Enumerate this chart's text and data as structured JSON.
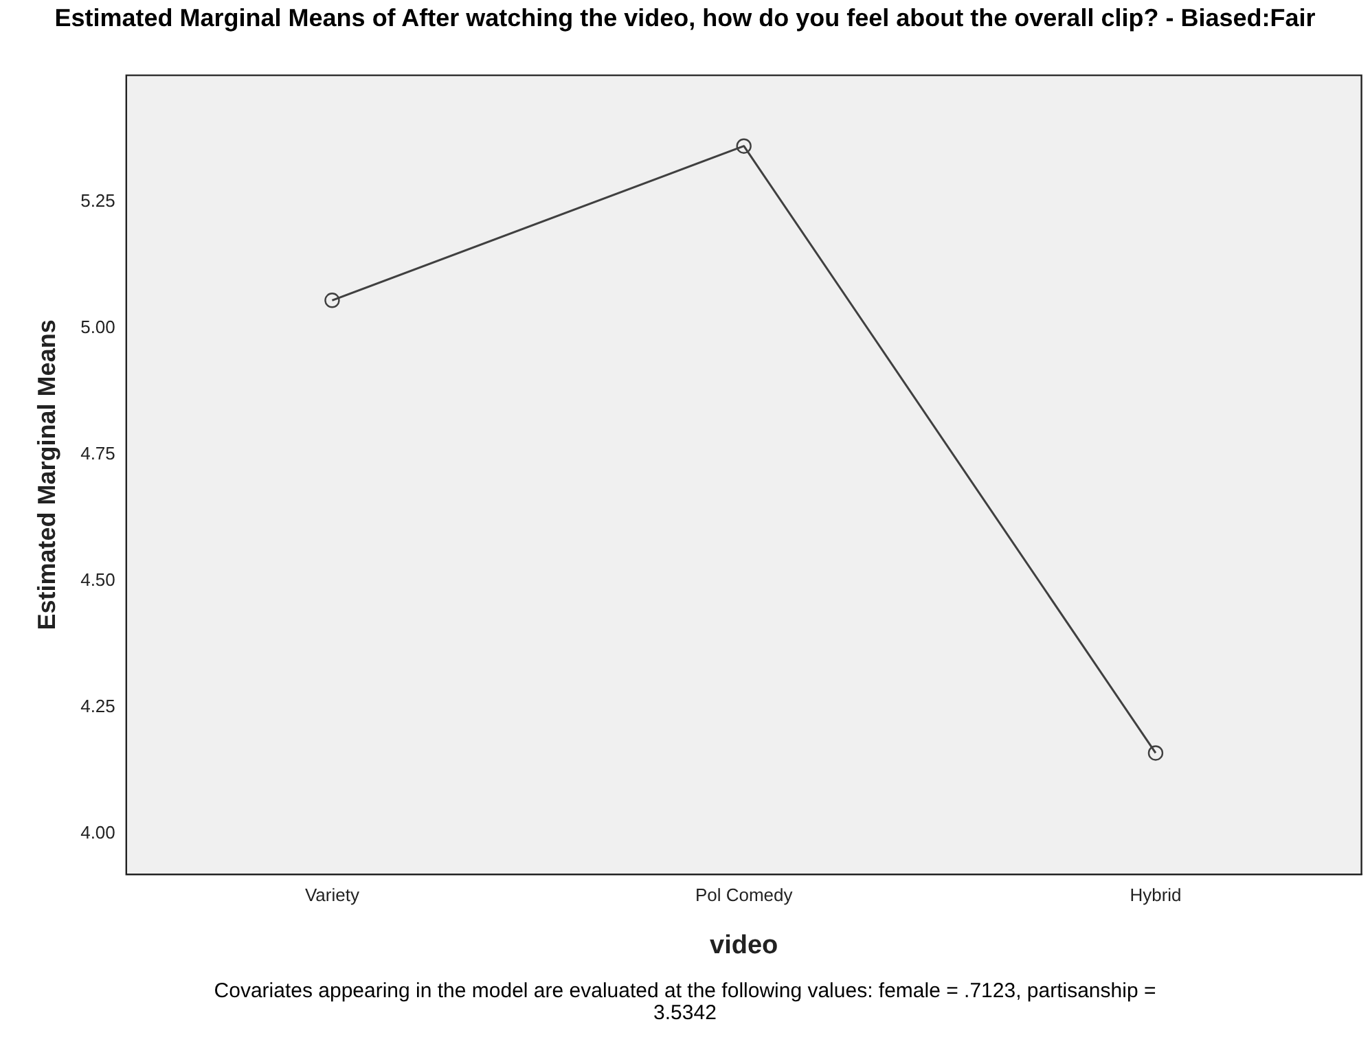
{
  "chart_data": {
    "type": "line",
    "title": "Estimated Marginal Means of After watching the video, how do you feel about the overall clip? - Biased:Fair",
    "xlabel": "video",
    "ylabel": "Estimated Marginal Means",
    "categories": [
      "Variety",
      "Pol Comedy",
      "Hybrid"
    ],
    "series": [
      {
        "color": "#404040",
        "values": [
          5.055,
          5.36,
          4.16
        ]
      }
    ],
    "ylim": [
      3.92,
      5.5
    ],
    "yticks": [
      {
        "value": 4,
        "label": "4.00"
      },
      {
        "value": 4.25,
        "label": "4.25"
      },
      {
        "value": 4.5,
        "label": "4.50"
      },
      {
        "value": 4.75,
        "label": "4.75"
      },
      {
        "value": 5,
        "label": "5.00"
      },
      {
        "value": 5.25,
        "label": "5.25"
      }
    ],
    "grid": false,
    "legend": false,
    "marker": "circle",
    "line_style": "solid",
    "annotations": [
      "Covariates appearing in the model are evaluated at the following values: female = .7123, partisanship = 3.5342"
    ]
  }
}
